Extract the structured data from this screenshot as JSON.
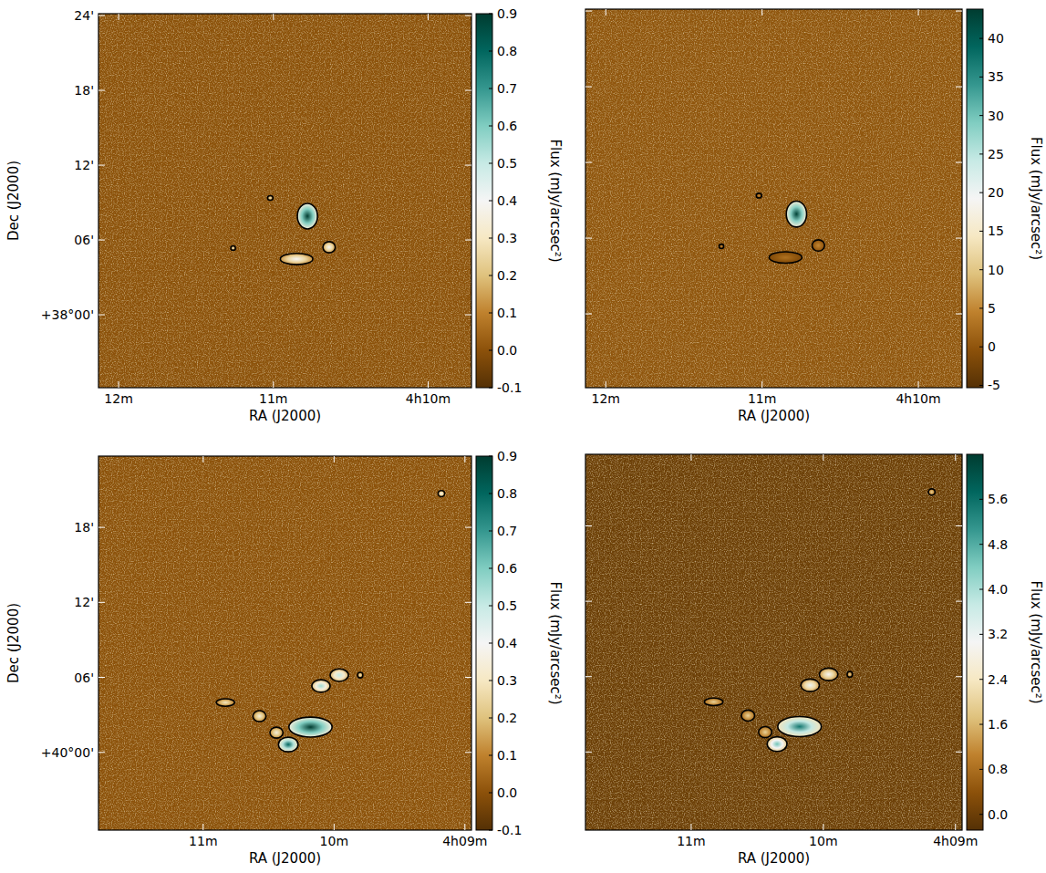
{
  "chart_data": [
    {
      "type": "image",
      "xlabel": "RA (J2000)",
      "ylabel": "Dec (J2000)",
      "xlim": [
        12.13,
        9.72
      ],
      "ylim": [
        -5.85,
        24.15
      ],
      "xticks": [
        {
          "value": 12,
          "label": "12m"
        },
        {
          "value": 11,
          "label": "11m"
        },
        {
          "value": 10,
          "label": "4h10m"
        }
      ],
      "yticks": [
        {
          "value": 24,
          "label": "24'"
        },
        {
          "value": 18,
          "label": "18'"
        },
        {
          "value": 12,
          "label": "12'"
        },
        {
          "value": 6,
          "label": "06'"
        },
        {
          "value": 0,
          "label": "+38°00'"
        }
      ],
      "colorbar": {
        "label": "Flux (mJy/arcsec²)",
        "lim": [
          -0.1,
          0.9
        ],
        "ticks": [
          -0.1,
          {
            "value": 0,
            "label": "0.0"
          },
          0.1,
          0.2,
          0.3,
          0.4,
          0.5,
          0.6,
          0.7,
          0.8,
          0.9
        ]
      },
      "sources": [
        {
          "x": 10.78,
          "y": 7.91,
          "width": 0.13,
          "height": 2.05,
          "peak": 0.9
        },
        {
          "x": 10.85,
          "y": 4.47,
          "width": 0.21,
          "height": 0.9,
          "peak": 0.4
        },
        {
          "x": 10.64,
          "y": 5.42,
          "width": 0.08,
          "height": 0.9,
          "peak": 0.4
        },
        {
          "x": 11.02,
          "y": 9.37,
          "width": 0.035,
          "height": 0.37,
          "peak": 0.3
        },
        {
          "x": 11.26,
          "y": 5.35,
          "width": 0.03,
          "height": 0.35,
          "peak": 0.3
        }
      ]
    },
    {
      "type": "image",
      "xlabel": "RA (J2000)",
      "tick_labels": "x",
      "xlim": [
        12.13,
        9.72
      ],
      "ylim": [
        -5.85,
        24.15
      ],
      "xticks": [
        {
          "value": 12,
          "label": "12m"
        },
        {
          "value": 11,
          "label": "11m"
        },
        {
          "value": 10,
          "label": "4h10m"
        }
      ],
      "yticks": [
        24,
        18,
        12,
        6,
        0
      ],
      "colorbar": {
        "label": "Flux (mJy/arcsec²)",
        "lim": [
          -5.3,
          43.8
        ],
        "ticks": [
          -5,
          0,
          5,
          10,
          15,
          20,
          25,
          30,
          35,
          40
        ]
      },
      "sources": [
        {
          "x": 10.78,
          "y": 7.91,
          "width": 0.13,
          "height": 2.05,
          "peak": 43
        },
        {
          "x": 10.85,
          "y": 4.47,
          "width": 0.21,
          "height": 0.9,
          "peak": 3
        },
        {
          "x": 10.64,
          "y": 5.42,
          "width": 0.08,
          "height": 0.9,
          "peak": 5
        },
        {
          "x": 11.02,
          "y": 9.37,
          "width": 0.035,
          "height": 0.37,
          "peak": 5
        },
        {
          "x": 11.26,
          "y": 5.35,
          "width": 0.03,
          "height": 0.35,
          "peak": 5
        }
      ]
    },
    {
      "type": "image",
      "xlabel": "RA (J2000)",
      "ylabel": "Dec (J2000)",
      "xlim": [
        11.8,
        8.95
      ],
      "ylim": [
        -6.22,
        23.7
      ],
      "xticks": [
        {
          "value": 11,
          "label": "11m"
        },
        {
          "value": 10,
          "label": "10m"
        },
        {
          "value": 9,
          "label": "4h09m"
        }
      ],
      "yticks": [
        {
          "value": 18,
          "label": "18'"
        },
        {
          "value": 12,
          "label": "12'"
        },
        {
          "value": 6,
          "label": "06'"
        },
        {
          "value": 0,
          "label": "+40°00'"
        }
      ],
      "colorbar": {
        "label": "Flux (mJy/arcsec²)",
        "lim": [
          -0.1,
          0.9
        ],
        "ticks": [
          -0.1,
          {
            "value": 0,
            "label": "0.0"
          },
          0.1,
          0.2,
          0.3,
          0.4,
          0.5,
          0.6,
          0.7,
          0.8,
          0.9
        ]
      },
      "sources": [
        {
          "x": 10.1,
          "y": 5.31,
          "width": 0.14,
          "height": 1.0,
          "peak": 0.55
        },
        {
          "x": 9.96,
          "y": 6.18,
          "width": 0.14,
          "height": 1.0,
          "peak": 0.5
        },
        {
          "x": 9.8,
          "y": 6.18,
          "width": 0.04,
          "height": 0.45,
          "peak": 0.3
        },
        {
          "x": 10.18,
          "y": 2.02,
          "width": 0.33,
          "height": 1.6,
          "peak": 0.9
        },
        {
          "x": 10.35,
          "y": 0.63,
          "width": 0.15,
          "height": 1.17,
          "peak": 0.8
        },
        {
          "x": 10.44,
          "y": 1.58,
          "width": 0.1,
          "height": 0.88,
          "peak": 0.35
        },
        {
          "x": 10.57,
          "y": 2.9,
          "width": 0.1,
          "height": 0.88,
          "peak": 0.35
        },
        {
          "x": 10.83,
          "y": 3.99,
          "width": 0.14,
          "height": 0.6,
          "peak": 0.3
        },
        {
          "x": 9.18,
          "y": 20.7,
          "width": 0.05,
          "height": 0.5,
          "peak": 0.4
        }
      ]
    },
    {
      "type": "image",
      "xlabel": "RA (J2000)",
      "tick_labels": "x",
      "xlim": [
        11.8,
        8.95
      ],
      "ylim": [
        -6.22,
        23.7
      ],
      "xticks": [
        {
          "value": 11,
          "label": "11m"
        },
        {
          "value": 10,
          "label": "10m"
        },
        {
          "value": 9,
          "label": "4h09m"
        }
      ],
      "yticks": [
        18,
        12,
        6,
        0
      ],
      "colorbar": {
        "label": "Flux (mJy/arcsec²)",
        "lim": [
          -0.28,
          6.4
        ],
        "ticks": [
          {
            "value": 0,
            "label": "0.0"
          },
          0.8,
          1.6,
          2.4,
          3.2,
          {
            "value": 4,
            "label": "4.0"
          },
          4.8,
          5.6
        ]
      },
      "sources": [
        {
          "x": 10.1,
          "y": 5.31,
          "width": 0.14,
          "height": 1.0,
          "peak": 3.2
        },
        {
          "x": 9.96,
          "y": 6.18,
          "width": 0.14,
          "height": 1.0,
          "peak": 3.0
        },
        {
          "x": 9.8,
          "y": 6.18,
          "width": 0.04,
          "height": 0.45,
          "peak": 2
        },
        {
          "x": 10.18,
          "y": 2.02,
          "width": 0.33,
          "height": 1.6,
          "peak": 5.5
        },
        {
          "x": 10.35,
          "y": 0.63,
          "width": 0.15,
          "height": 1.17,
          "peak": 4.5
        },
        {
          "x": 10.44,
          "y": 1.58,
          "width": 0.1,
          "height": 0.88,
          "peak": 2
        },
        {
          "x": 10.57,
          "y": 2.9,
          "width": 0.1,
          "height": 0.88,
          "peak": 2
        },
        {
          "x": 10.83,
          "y": 3.99,
          "width": 0.14,
          "height": 0.6,
          "peak": 2
        },
        {
          "x": 9.18,
          "y": 20.7,
          "width": 0.05,
          "height": 0.5,
          "peak": 2
        }
      ]
    }
  ]
}
